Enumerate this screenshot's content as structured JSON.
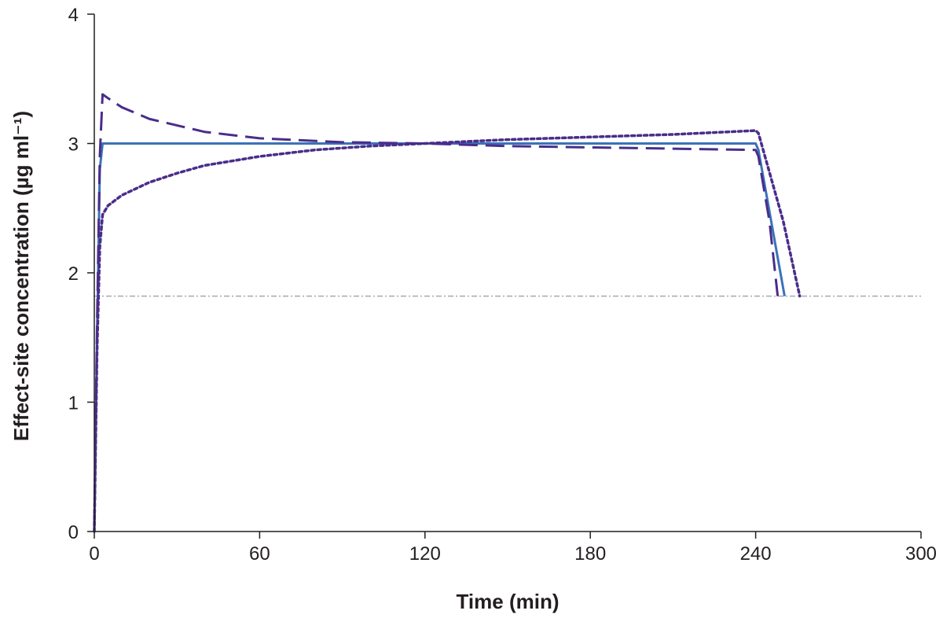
{
  "chart_data": {
    "type": "line",
    "title": "",
    "xlabel": "Time (min)",
    "ylabel": "Effect-site concentration (µg ml⁻¹)",
    "xlim": [
      0,
      300
    ],
    "ylim": [
      0,
      4
    ],
    "xticks": [
      "0",
      "60",
      "120",
      "180",
      "240",
      "300"
    ],
    "yticks": [
      "0",
      "1",
      "2",
      "3",
      "4"
    ],
    "grid": false,
    "legend": "none",
    "threshold_line": {
      "y": 1.82,
      "style": "dash-dot",
      "color": "#a7a9ac"
    },
    "series": [
      {
        "style": "solid",
        "color": "#3a72b8",
        "x": [
          0,
          1,
          2,
          3,
          4,
          60,
          120,
          180,
          240,
          241,
          250.5
        ],
        "y": [
          0,
          1.5,
          2.8,
          3.0,
          3.0,
          3.0,
          3.0,
          3.0,
          3.0,
          2.95,
          1.82
        ]
      },
      {
        "style": "dashed",
        "color": "#4a2d8a",
        "x": [
          0,
          1,
          2,
          3,
          5,
          10,
          20,
          40,
          60,
          90,
          120,
          150,
          180,
          210,
          240,
          241,
          245,
          248
        ],
        "y": [
          0,
          1.6,
          2.9,
          3.38,
          3.35,
          3.28,
          3.19,
          3.09,
          3.04,
          3.01,
          3.0,
          2.98,
          2.97,
          2.96,
          2.95,
          2.9,
          2.4,
          1.82
        ]
      },
      {
        "style": "dotted",
        "color": "#4a2d8a",
        "x": [
          0,
          1,
          2,
          3,
          5,
          10,
          20,
          30,
          40,
          60,
          80,
          100,
          120,
          150,
          180,
          210,
          230,
          240,
          241,
          250,
          256
        ],
        "y": [
          0,
          1.4,
          2.2,
          2.45,
          2.52,
          2.6,
          2.7,
          2.77,
          2.83,
          2.9,
          2.95,
          2.98,
          3.0,
          3.03,
          3.05,
          3.07,
          3.09,
          3.1,
          3.08,
          2.4,
          1.82
        ]
      }
    ]
  }
}
